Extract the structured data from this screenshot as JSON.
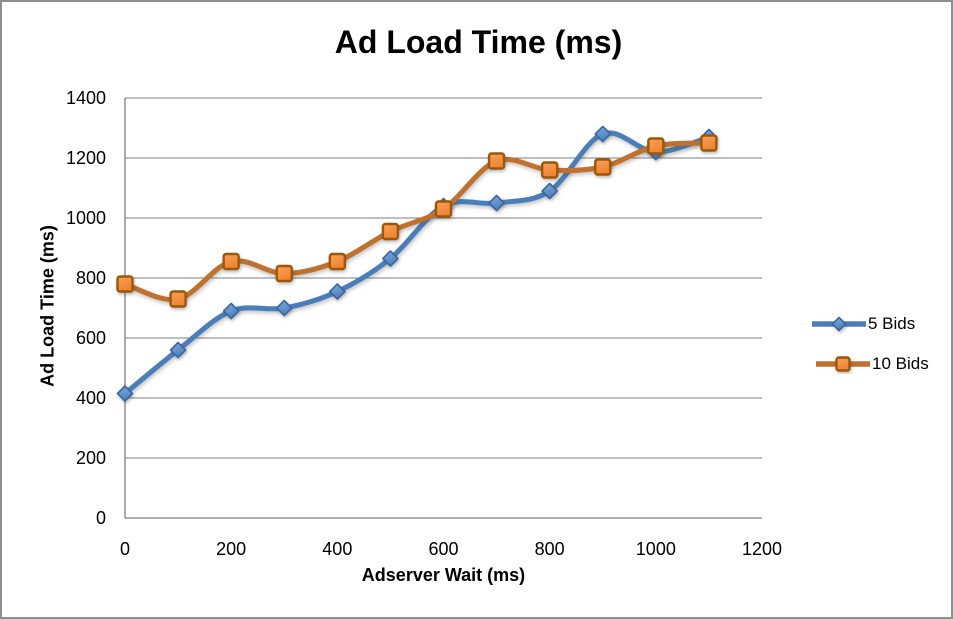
{
  "chart_data": {
    "type": "line",
    "title": "Ad Load Time (ms)",
    "xlabel": "Adserver Wait (ms)",
    "ylabel": "Ad Load Time (ms)",
    "x": [
      0,
      100,
      200,
      300,
      400,
      500,
      600,
      700,
      800,
      900,
      1000,
      1100
    ],
    "series": [
      {
        "name": "5 Bids",
        "marker": "diamond",
        "line_color": "#4a7ebb",
        "marker_fill": "#85ace0",
        "marker_fill2": "#4d7fbc",
        "marker_stroke": "#3a67a3",
        "values": [
          415,
          560,
          690,
          700,
          755,
          865,
          1040,
          1050,
          1090,
          1280,
          1220,
          1270
        ]
      },
      {
        "name": "10 Bids",
        "marker": "square",
        "line_color": "#bf712d",
        "marker_fill": "#f9a158",
        "marker_fill2": "#ee8433",
        "marker_stroke": "#9c5708",
        "values": [
          780,
          730,
          855,
          815,
          855,
          955,
          1030,
          1190,
          1160,
          1170,
          1240,
          1250
        ]
      }
    ],
    "xlim": [
      0,
      1200
    ],
    "ylim": [
      0,
      1400
    ],
    "xticks": [
      0,
      200,
      400,
      600,
      800,
      1000,
      1200
    ],
    "yticks": [
      0,
      200,
      400,
      600,
      800,
      1000,
      1200,
      1400
    ],
    "grid": true,
    "smooth": true,
    "legend_position": "right",
    "gridline_color": "#7f7f7f",
    "axis_color": "#7f7f7f",
    "text_color": "#000000",
    "background_color": "#ffffff",
    "border_color": "#8f8f8f"
  }
}
